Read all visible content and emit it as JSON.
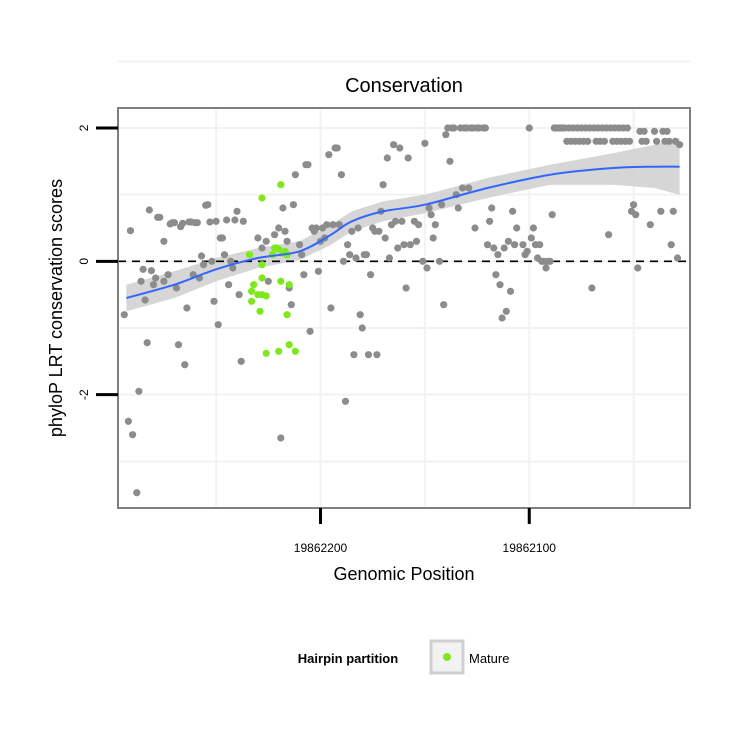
{
  "chart_data": {
    "type": "scatter",
    "title": "Conservation",
    "xlabel": "Genomic Position",
    "ylabel": "phyloP LRT conservation scores",
    "x_reversed": true,
    "x_ticks": [
      19862200,
      19862100
    ],
    "x_tick_labels": [
      "19862200",
      "19862100"
    ],
    "y_ticks": [
      2,
      0,
      -2
    ],
    "y_tick_labels": [
      "2",
      "0",
      "-2"
    ],
    "xlim": [
      19862297,
      19862023
    ],
    "ylim": [
      -3.7,
      2.3
    ],
    "reference_line": {
      "y": 0,
      "style": "dashed"
    },
    "grid": true,
    "legend": {
      "title": "Hairpin partition",
      "position": "bottom",
      "entries": [
        "Mature"
      ]
    },
    "colors": {
      "other_points": "#8c8c8c",
      "mature_points": "#7ee81d",
      "smooth_line": "#3366ff",
      "confidence_band": "#cfcfcf",
      "frame": "#7f7f7f",
      "grid": "#f2f2f2"
    },
    "series": [
      {
        "name": "",
        "role": "other",
        "points": [
          [
            19862294,
            -0.8
          ],
          [
            19862292,
            -2.4
          ],
          [
            19862291,
            0.46
          ],
          [
            19862290,
            -2.6
          ],
          [
            19862288,
            -3.47
          ],
          [
            19862287,
            -1.95
          ],
          [
            19862286,
            -0.3
          ],
          [
            19862285,
            -0.12
          ],
          [
            19862284,
            -0.58
          ],
          [
            19862283,
            -1.22
          ],
          [
            19862282,
            0.77
          ],
          [
            19862281,
            -0.14
          ],
          [
            19862280,
            -0.35
          ],
          [
            19862279,
            -0.25
          ],
          [
            19862278,
            0.66
          ],
          [
            19862277,
            0.66
          ],
          [
            19862275,
            0.3
          ],
          [
            19862275,
            -0.3
          ],
          [
            19862273,
            -0.2
          ],
          [
            19862272,
            0.56
          ],
          [
            19862271,
            0.58
          ],
          [
            19862270,
            0.58
          ],
          [
            19862269,
            -0.4
          ],
          [
            19862268,
            -1.25
          ],
          [
            19862267,
            0.52
          ],
          [
            19862266,
            0.57
          ],
          [
            19862265,
            -1.55
          ],
          [
            19862264,
            -0.7
          ],
          [
            19862263,
            0.59
          ],
          [
            19862262,
            0.59
          ],
          [
            19862261,
            -0.2
          ],
          [
            19862260,
            0.58
          ],
          [
            19862259,
            0.58
          ],
          [
            19862258,
            -0.25
          ],
          [
            19862257,
            0.08
          ],
          [
            19862256,
            -0.05
          ],
          [
            19862255,
            0.84
          ],
          [
            19862254,
            0.85
          ],
          [
            19862253,
            0.59
          ],
          [
            19862252,
            0.0
          ],
          [
            19862251,
            -0.6
          ],
          [
            19862250,
            0.6
          ],
          [
            19862249,
            -0.95
          ],
          [
            19862248,
            0.35
          ],
          [
            19862247,
            0.35
          ],
          [
            19862246,
            0.1
          ],
          [
            19862245,
            0.62
          ],
          [
            19862244,
            -0.35
          ],
          [
            19862243,
            0.0
          ],
          [
            19862242,
            -0.1
          ],
          [
            19862241,
            0.62
          ],
          [
            19862240,
            0.75
          ],
          [
            19862239,
            -0.5
          ],
          [
            19862238,
            -1.5
          ],
          [
            19862237,
            0.6
          ],
          [
            19862230,
            0.35
          ],
          [
            19862228,
            0.2
          ],
          [
            19862226,
            0.3
          ],
          [
            19862225,
            -0.3
          ],
          [
            19862222,
            0.4
          ],
          [
            19862220,
            0.5
          ],
          [
            19862219,
            -2.65
          ],
          [
            19862218,
            0.8
          ],
          [
            19862217,
            0.45
          ],
          [
            19862216,
            0.3
          ],
          [
            19862215,
            -0.4
          ],
          [
            19862214,
            -0.65
          ],
          [
            19862213,
            0.85
          ],
          [
            19862212,
            1.3
          ],
          [
            19862210,
            0.25
          ],
          [
            19862209,
            0.1
          ],
          [
            19862208,
            -0.2
          ],
          [
            19862207,
            1.45
          ],
          [
            19862206,
            1.45
          ],
          [
            19862205,
            -1.05
          ],
          [
            19862204,
            0.5
          ],
          [
            19862203,
            0.45
          ],
          [
            19862202,
            0.5
          ],
          [
            19862201,
            -0.15
          ],
          [
            19862200,
            0.3
          ],
          [
            19862199,
            0.5
          ],
          [
            19862198,
            0.35
          ],
          [
            19862197,
            0.55
          ],
          [
            19862196,
            1.6
          ],
          [
            19862195,
            -0.7
          ],
          [
            19862194,
            0.55
          ],
          [
            19862193,
            1.7
          ],
          [
            19862192,
            1.7
          ],
          [
            19862191,
            0.55
          ],
          [
            19862190,
            1.3
          ],
          [
            19862189,
            0.0
          ],
          [
            19862188,
            -2.1
          ],
          [
            19862187,
            0.25
          ],
          [
            19862186,
            0.1
          ],
          [
            19862185,
            0.45
          ],
          [
            19862184,
            -1.4
          ],
          [
            19862183,
            0.05
          ],
          [
            19862182,
            0.5
          ],
          [
            19862181,
            -0.8
          ],
          [
            19862180,
            -1.0
          ],
          [
            19862179,
            0.1
          ],
          [
            19862178,
            0.1
          ],
          [
            19862177,
            -1.4
          ],
          [
            19862176,
            -0.2
          ],
          [
            19862175,
            0.5
          ],
          [
            19862174,
            0.45
          ],
          [
            19862173,
            -1.4
          ],
          [
            19862172,
            0.45
          ],
          [
            19862171,
            0.75
          ],
          [
            19862170,
            1.15
          ],
          [
            19862169,
            0.35
          ],
          [
            19862168,
            1.55
          ],
          [
            19862167,
            0.05
          ],
          [
            19862166,
            0.55
          ],
          [
            19862165,
            1.75
          ],
          [
            19862164,
            0.6
          ],
          [
            19862163,
            0.2
          ],
          [
            19862162,
            1.7
          ],
          [
            19862161,
            0.6
          ],
          [
            19862160,
            0.25
          ],
          [
            19862159,
            -0.4
          ],
          [
            19862158,
            1.55
          ],
          [
            19862157,
            0.25
          ],
          [
            19862155,
            0.6
          ],
          [
            19862154,
            0.3
          ],
          [
            19862153,
            0.55
          ],
          [
            19862151,
            0.0
          ],
          [
            19862150,
            1.77
          ],
          [
            19862149,
            -0.1
          ],
          [
            19862148,
            0.8
          ],
          [
            19862147,
            0.7
          ],
          [
            19862146,
            0.35
          ],
          [
            19862145,
            0.55
          ],
          [
            19862143,
            0.0
          ],
          [
            19862142,
            0.85
          ],
          [
            19862141,
            -0.65
          ],
          [
            19862140,
            1.9
          ],
          [
            19862139,
            2.0
          ],
          [
            19862138,
            1.5
          ],
          [
            19862137,
            2.0
          ],
          [
            19862136,
            2.0
          ],
          [
            19862135,
            1.0
          ],
          [
            19862134,
            0.8
          ],
          [
            19862133,
            2.0
          ],
          [
            19862132,
            1.1
          ],
          [
            19862131,
            2.0
          ],
          [
            19862130,
            2.0
          ],
          [
            19862129,
            1.1
          ],
          [
            19862128,
            2.0
          ],
          [
            19862127,
            2.0
          ],
          [
            19862126,
            0.5
          ],
          [
            19862125,
            2.0
          ],
          [
            19862124,
            2.0
          ],
          [
            19862122,
            2.0
          ],
          [
            19862121,
            2.0
          ],
          [
            19862120,
            0.25
          ],
          [
            19862119,
            0.6
          ],
          [
            19862118,
            0.8
          ],
          [
            19862117,
            0.2
          ],
          [
            19862116,
            -0.2
          ],
          [
            19862115,
            0.1
          ],
          [
            19862114,
            -0.35
          ],
          [
            19862113,
            -0.85
          ],
          [
            19862112,
            0.2
          ],
          [
            19862111,
            -0.75
          ],
          [
            19862110,
            0.3
          ],
          [
            19862109,
            -0.45
          ],
          [
            19862108,
            0.75
          ],
          [
            19862107,
            0.25
          ],
          [
            19862106,
            0.5
          ],
          [
            19862103,
            0.25
          ],
          [
            19862102,
            0.1
          ],
          [
            19862101,
            0.15
          ],
          [
            19862100,
            2.0
          ],
          [
            19862099,
            0.35
          ],
          [
            19862098,
            0.5
          ],
          [
            19862097,
            0.25
          ],
          [
            19862096,
            0.05
          ],
          [
            19862095,
            0.25
          ],
          [
            19862094,
            0.0
          ],
          [
            19862093,
            0.0
          ],
          [
            19862092,
            -0.1
          ],
          [
            19862091,
            0.0
          ],
          [
            19862090,
            0.0
          ],
          [
            19862089,
            0.7
          ],
          [
            19862088,
            2.0
          ],
          [
            19862087,
            2.0
          ],
          [
            19862086,
            2.0
          ],
          [
            19862085,
            2.0
          ],
          [
            19862084,
            2.0
          ],
          [
            19862083,
            2.0
          ],
          [
            19862082,
            1.8
          ],
          [
            19862081,
            2.0
          ],
          [
            19862080,
            1.8
          ],
          [
            19862079,
            2.0
          ],
          [
            19862078,
            1.8
          ],
          [
            19862077,
            2.0
          ],
          [
            19862076,
            1.8
          ],
          [
            19862075,
            2.0
          ],
          [
            19862074,
            1.8
          ],
          [
            19862073,
            2.0
          ],
          [
            19862072,
            1.8
          ],
          [
            19862071,
            2.0
          ],
          [
            19862070,
            -0.4
          ],
          [
            19862069,
            2.0
          ],
          [
            19862068,
            1.8
          ],
          [
            19862067,
            2.0
          ],
          [
            19862066,
            1.8
          ],
          [
            19862065,
            2.0
          ],
          [
            19862064,
            1.8
          ],
          [
            19862063,
            2.0
          ],
          [
            19862062,
            0.4
          ],
          [
            19862061,
            2.0
          ],
          [
            19862060,
            1.8
          ],
          [
            19862059,
            2.0
          ],
          [
            19862058,
            1.8
          ],
          [
            19862057,
            2.0
          ],
          [
            19862056,
            1.8
          ],
          [
            19862055,
            2.0
          ],
          [
            19862054,
            1.8
          ],
          [
            19862053,
            2.0
          ],
          [
            19862052,
            1.8
          ],
          [
            19862051,
            0.75
          ],
          [
            19862050,
            0.85
          ],
          [
            19862049,
            0.7
          ],
          [
            19862048,
            -0.1
          ],
          [
            19862047,
            1.95
          ],
          [
            19862046,
            1.8
          ],
          [
            19862045,
            1.95
          ],
          [
            19862044,
            1.8
          ],
          [
            19862042,
            0.55
          ],
          [
            19862040,
            1.95
          ],
          [
            19862039,
            1.8
          ],
          [
            19862037,
            0.75
          ],
          [
            19862036,
            1.95
          ],
          [
            19862035,
            1.8
          ],
          [
            19862034,
            1.95
          ],
          [
            19862033,
            1.8
          ],
          [
            19862032,
            0.25
          ],
          [
            19862031,
            0.75
          ],
          [
            19862030,
            1.8
          ],
          [
            19862029,
            0.05
          ],
          [
            19862028,
            1.75
          ]
        ]
      },
      {
        "name": "Mature",
        "role": "mature",
        "points": [
          [
            19862219,
            1.15
          ],
          [
            19862223,
            0.1
          ],
          [
            19862222,
            0.2
          ],
          [
            19862221,
            0.2
          ],
          [
            19862220,
            0.18
          ],
          [
            19862218,
            0.12
          ],
          [
            19862217,
            0.15
          ],
          [
            19862216,
            0.1
          ],
          [
            19862215,
            -0.35
          ],
          [
            19862219,
            -0.3
          ],
          [
            19862215,
            -1.25
          ],
          [
            19862212,
            -1.35
          ],
          [
            19862216,
            -0.8
          ],
          [
            19862220,
            -1.35
          ],
          [
            19862226,
            -1.38
          ],
          [
            19862226,
            -0.52
          ],
          [
            19862228,
            -0.5
          ],
          [
            19862230,
            -0.5
          ],
          [
            19862228,
            -0.25
          ],
          [
            19862228,
            -0.05
          ],
          [
            19862232,
            -0.35
          ],
          [
            19862233,
            -0.45
          ],
          [
            19862233,
            -0.6
          ],
          [
            19862229,
            -0.75
          ],
          [
            19862234,
            0.1
          ],
          [
            19862228,
            0.95
          ]
        ]
      }
    ],
    "smooth": {
      "x": [
        19862293,
        19862270,
        19862250,
        19862230,
        19862210,
        19862195,
        19862185,
        19862170,
        19862150,
        19862120,
        19862090,
        19862060,
        19862040,
        19862028
      ],
      "y": [
        -0.55,
        -0.35,
        -0.12,
        0.05,
        0.15,
        0.4,
        0.6,
        0.75,
        0.85,
        1.1,
        1.3,
        1.4,
        1.42,
        1.42
      ],
      "lower": [
        -0.75,
        -0.55,
        -0.3,
        -0.1,
        0.02,
        0.25,
        0.45,
        0.6,
        0.72,
        0.95,
        1.15,
        1.15,
        1.1,
        1.0
      ],
      "upper": [
        -0.35,
        -0.15,
        0.05,
        0.2,
        0.3,
        0.55,
        0.75,
        0.9,
        1.0,
        1.25,
        1.45,
        1.62,
        1.75,
        1.85
      ]
    }
  }
}
